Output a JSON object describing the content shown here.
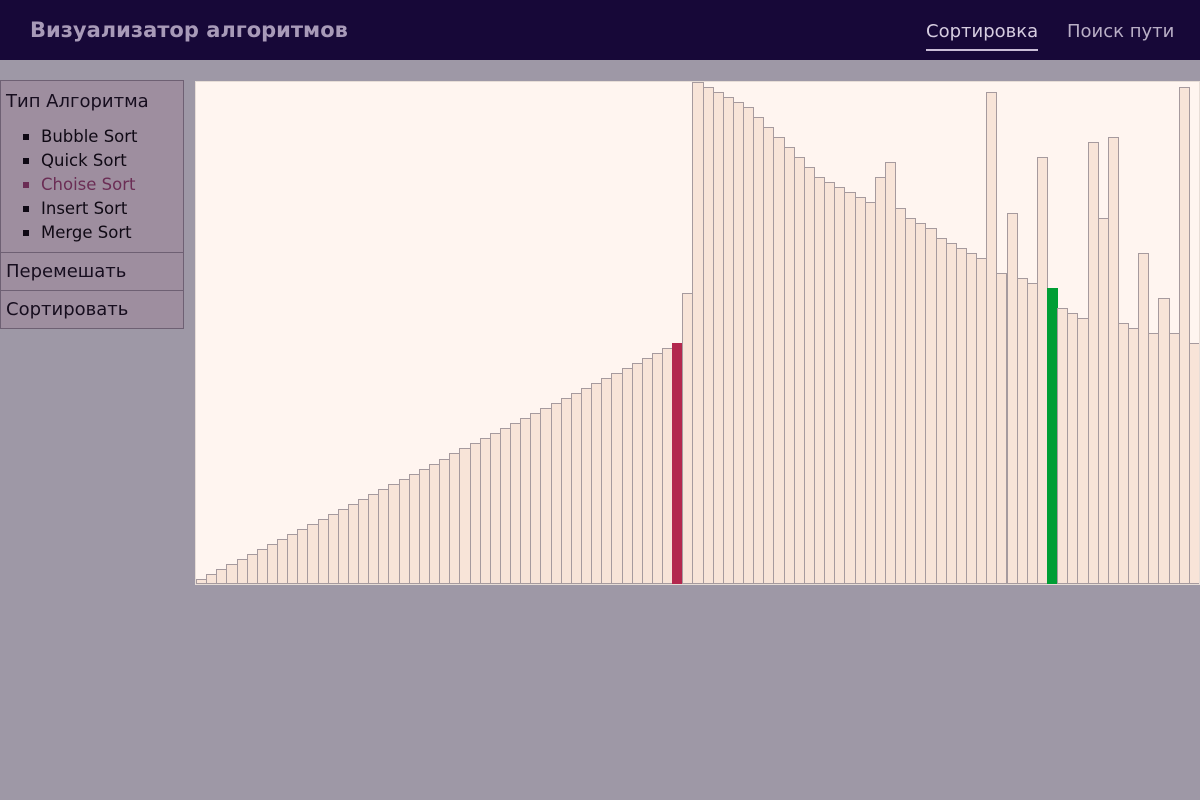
{
  "header": {
    "title": "Визуализатор алгоритмов",
    "tabs": [
      {
        "label": "Сортировка",
        "active": true
      },
      {
        "label": "Поиск пути",
        "active": false
      }
    ]
  },
  "sidebar": {
    "algorithm_heading": "Тип Алгоритма",
    "algorithms": [
      {
        "label": "Bubble Sort",
        "selected": false
      },
      {
        "label": "Quick Sort",
        "selected": false
      },
      {
        "label": "Choise Sort",
        "selected": true
      },
      {
        "label": "Insert Sort",
        "selected": false
      },
      {
        "label": "Merge Sort",
        "selected": false
      }
    ],
    "shuffle_label": "Перемешать",
    "sort_label": "Сортировать"
  },
  "colors": {
    "header_bg": "#170838",
    "page_bg": "#9e98a6",
    "sidebar_bg": "#9e8e9f",
    "bar_fill": "#f8e4d8",
    "bar_border": "#a69a9e",
    "compare_highlight": "#b3284e",
    "min_highlight": "#009e35"
  },
  "chart_data": {
    "type": "bar",
    "max_value": 100,
    "values": [
      1,
      2,
      3,
      4,
      5,
      6,
      7,
      8,
      9,
      10,
      11,
      12,
      13,
      14,
      15,
      16,
      17,
      18,
      19,
      20,
      21,
      22,
      23,
      24,
      25,
      26,
      27,
      28,
      29,
      30,
      31,
      32,
      33,
      34,
      35,
      36,
      37,
      38,
      39,
      40,
      41,
      42,
      43,
      44,
      45,
      46,
      47,
      48,
      58,
      100,
      99,
      98,
      97,
      96,
      95,
      93,
      91,
      89,
      87,
      85,
      83,
      81,
      80,
      79,
      78,
      77,
      76,
      81,
      84,
      75,
      73,
      72,
      71,
      69,
      68,
      67,
      66,
      65,
      98,
      62,
      74,
      61,
      60,
      85,
      59,
      55,
      54,
      53,
      88,
      73,
      89,
      52,
      51,
      66,
      50,
      57,
      50,
      99,
      48
    ],
    "highlights": [
      {
        "index": 47,
        "role": "compare"
      },
      {
        "index": 84,
        "role": "current-min"
      }
    ]
  }
}
